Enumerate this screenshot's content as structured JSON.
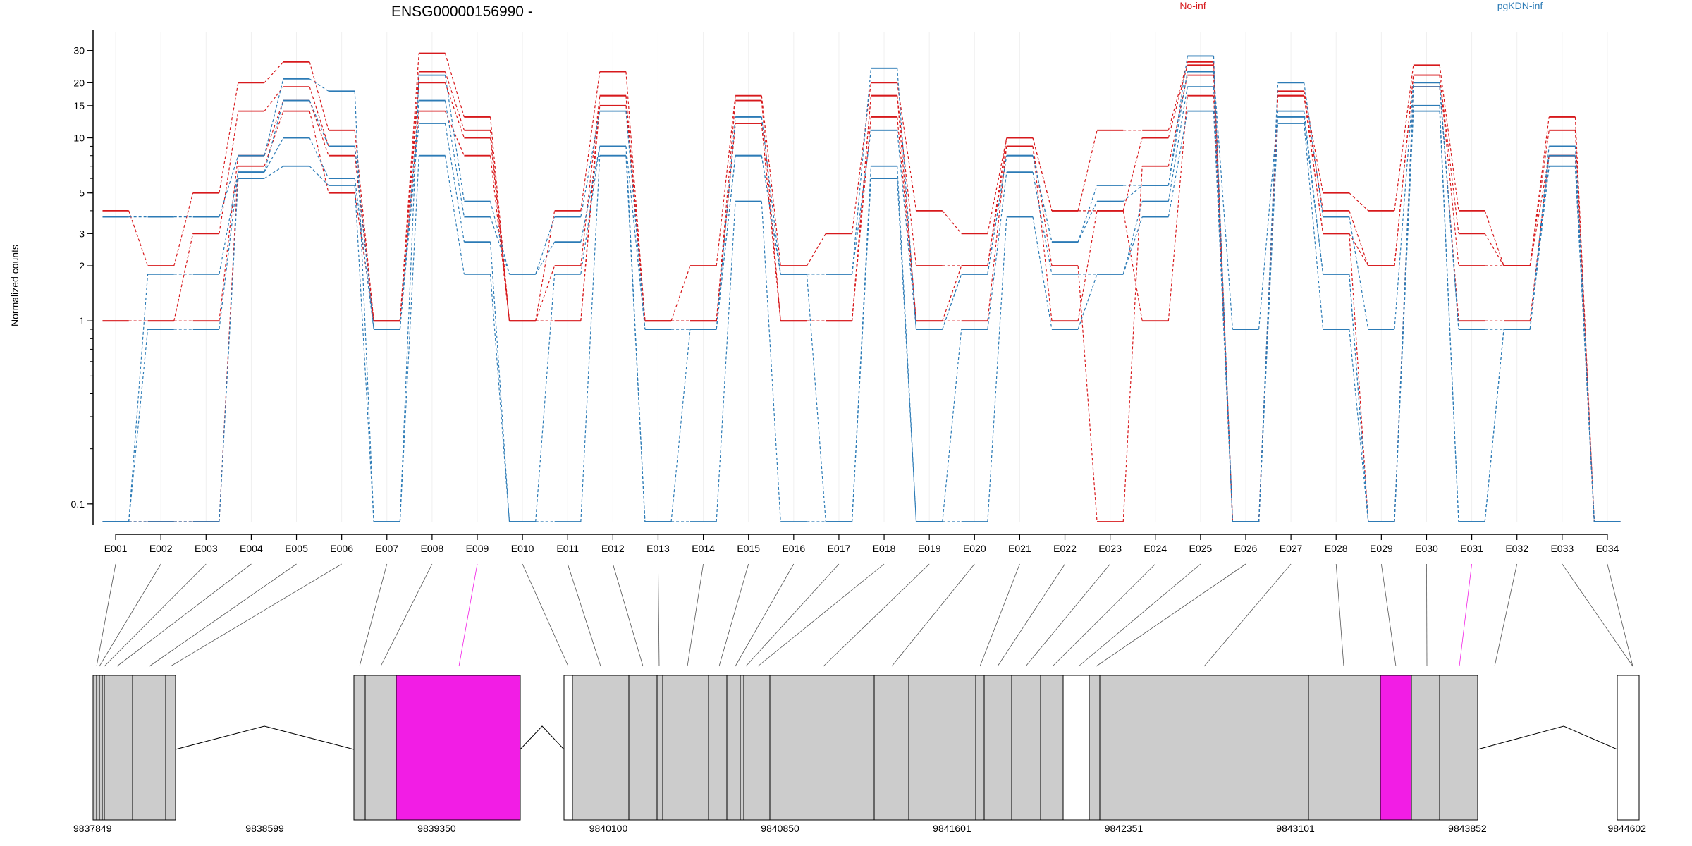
{
  "chart_data": {
    "type": "line",
    "title": "ENSG00000156990 -",
    "ylabel": "Normalized counts",
    "y_scale": "log",
    "ylim": [
      0.08,
      38
    ],
    "y_ticks": [
      0.1,
      1,
      2,
      3,
      5,
      10,
      15,
      20,
      30
    ],
    "grid": false,
    "legend_placement": "top-right",
    "legend": [
      {
        "label": "No-inf",
        "color": "#d7191c"
      },
      {
        "label": "pgKDN-inf",
        "color": "#2c7bb6"
      }
    ],
    "categories": [
      "E001",
      "E002",
      "E003",
      "E004",
      "E005",
      "E006",
      "E007",
      "E008",
      "E009",
      "E010",
      "E011",
      "E012",
      "E013",
      "E014",
      "E015",
      "E016",
      "E017",
      "E018",
      "E019",
      "E020",
      "E021",
      "E022",
      "E023",
      "E024",
      "E025",
      "E026",
      "E027",
      "E028",
      "E029",
      "E030",
      "E031",
      "E032",
      "E033",
      "E034"
    ],
    "series": [
      {
        "group": "No-inf",
        "color": "#d7191c",
        "values": [
          4,
          2,
          5,
          20,
          26,
          11,
          1,
          29,
          13,
          1,
          4,
          23,
          1,
          2,
          17,
          2,
          3,
          20,
          4,
          3,
          10,
          4,
          11,
          11,
          26,
          0.08,
          18,
          5,
          4,
          25,
          4,
          2,
          13,
          0.08
        ]
      },
      {
        "group": "No-inf",
        "color": "#d7191c",
        "values": [
          1,
          1,
          3,
          14,
          19,
          9,
          1,
          23,
          11,
          1,
          2,
          17,
          1,
          1,
          16,
          1,
          1,
          17,
          2,
          2,
          10,
          4,
          4,
          10,
          25,
          0.08,
          17,
          4,
          2,
          22,
          3,
          2,
          11,
          0.08
        ]
      },
      {
        "group": "No-inf",
        "color": "#d7191c",
        "values": [
          1,
          1,
          1,
          8,
          16,
          8,
          1,
          20,
          10,
          1,
          1,
          15,
          1,
          1,
          12,
          1,
          1,
          13,
          1,
          2,
          9,
          2,
          0.08,
          7,
          22,
          0.08,
          17,
          3,
          2,
          22,
          2,
          2,
          8,
          0.08
        ]
      },
      {
        "group": "No-inf",
        "color": "#d7191c",
        "values": [
          0.08,
          0.08,
          0.08,
          7,
          14,
          5,
          1,
          14,
          8,
          1,
          1,
          17,
          1,
          1,
          12,
          1,
          1,
          17,
          1,
          1,
          9,
          1,
          4,
          1,
          17,
          0.08,
          17,
          3,
          0.08,
          19,
          1,
          1,
          8,
          0.08
        ]
      },
      {
        "group": "pgKDN-inf",
        "color": "#2c7bb6",
        "values": [
          3.7,
          3.7,
          3.7,
          8,
          21,
          18,
          0.08,
          22,
          4.5,
          1.8,
          3.7,
          14,
          0.9,
          0.9,
          13,
          1.8,
          1.8,
          24,
          0.9,
          1.8,
          8,
          2.7,
          5.5,
          5.5,
          28,
          0.08,
          20,
          3.7,
          0.9,
          20,
          0.9,
          0.9,
          9,
          0.08
        ]
      },
      {
        "group": "pgKDN-inf",
        "color": "#2c7bb6",
        "values": [
          0.08,
          1.8,
          1.8,
          6.5,
          16,
          9,
          0.9,
          16,
          3.7,
          1.8,
          2.7,
          9,
          0.9,
          0.9,
          8,
          1.8,
          1.8,
          11,
          0.9,
          1.8,
          8,
          2.7,
          4.5,
          5.5,
          23,
          0.9,
          14,
          1.8,
          0.08,
          19,
          0.9,
          0.9,
          8,
          0.08
        ]
      },
      {
        "group": "pgKDN-inf",
        "color": "#2c7bb6",
        "values": [
          0.08,
          0.9,
          0.9,
          6.5,
          10,
          6,
          0.9,
          12,
          2.7,
          0.08,
          1.8,
          9,
          0.08,
          0.9,
          8,
          1.8,
          0.08,
          7,
          0.08,
          0.9,
          6.5,
          1.8,
          1.8,
          4.5,
          19,
          0.08,
          13,
          1.8,
          0.08,
          15,
          0.08,
          0.9,
          7,
          0.08
        ]
      },
      {
        "group": "pgKDN-inf",
        "color": "#2c7bb6",
        "values": [
          0.08,
          0.08,
          0.08,
          6,
          7,
          5.5,
          0.08,
          8,
          1.8,
          0.08,
          0.08,
          8,
          0.08,
          0.08,
          4.5,
          0.08,
          0.08,
          6,
          0.08,
          0.08,
          3.7,
          0.9,
          1.8,
          3.7,
          14,
          0.08,
          12,
          0.9,
          0.08,
          14,
          0.08,
          0.9,
          7,
          0.08
        ]
      }
    ],
    "gene_model": {
      "x_ticks": [
        "9837849",
        "9838599",
        "9839350",
        "9840100",
        "9840850",
        "9841601",
        "9842351",
        "9843101",
        "9843852",
        "9844602"
      ],
      "highlight_color": "#f21de5",
      "exon_fill": "#cccccc"
    }
  }
}
